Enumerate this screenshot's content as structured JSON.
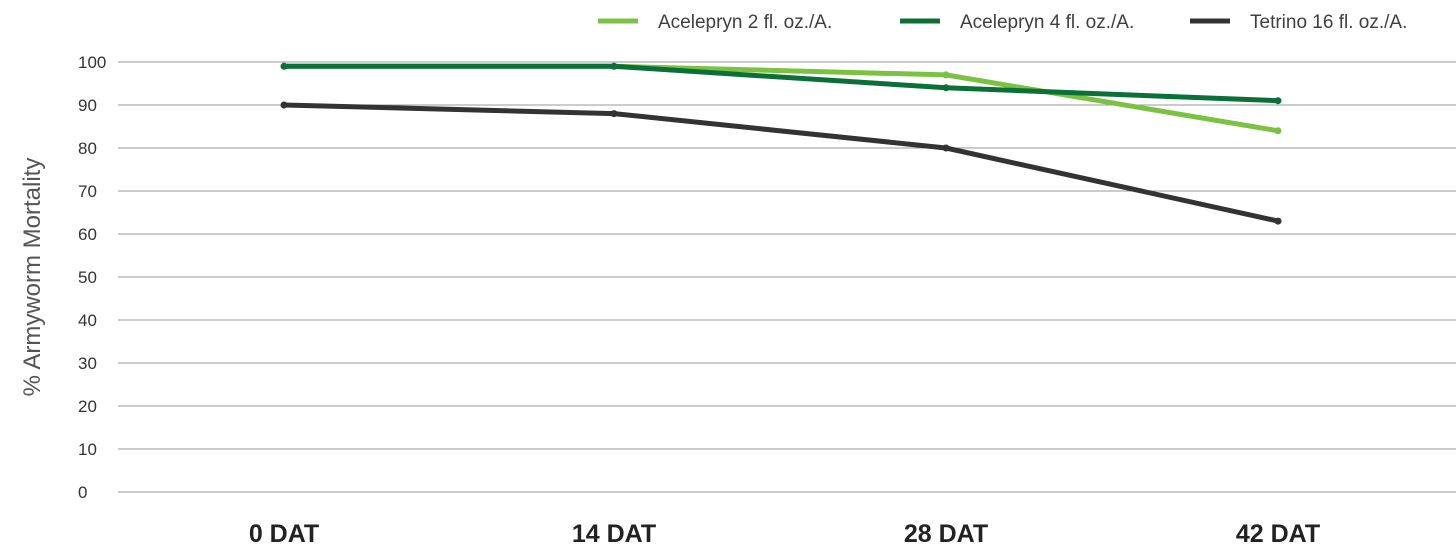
{
  "chart_data": {
    "type": "line",
    "title": "",
    "xlabel": "",
    "ylabel": "% Armyworm Mortality",
    "ylim": [
      0,
      100
    ],
    "yticks": [
      0,
      10,
      20,
      30,
      40,
      50,
      60,
      70,
      80,
      90,
      100
    ],
    "categories": [
      "0 DAT",
      "14 DAT",
      "28 DAT",
      "42 DAT"
    ],
    "grid": "horizontal",
    "legend_position": "top-right",
    "series": [
      {
        "name": "Acelepryn 2 fl. oz./A.",
        "color": "#7cc242",
        "values": [
          99,
          99,
          97,
          84
        ]
      },
      {
        "name": "Acelepryn 4 fl. oz./A.",
        "color": "#0b6f38",
        "values": [
          99,
          99,
          94,
          91
        ]
      },
      {
        "name": "Tetrino 16 fl. oz./A.",
        "color": "#333333",
        "values": [
          90,
          88,
          80,
          63
        ]
      }
    ]
  }
}
